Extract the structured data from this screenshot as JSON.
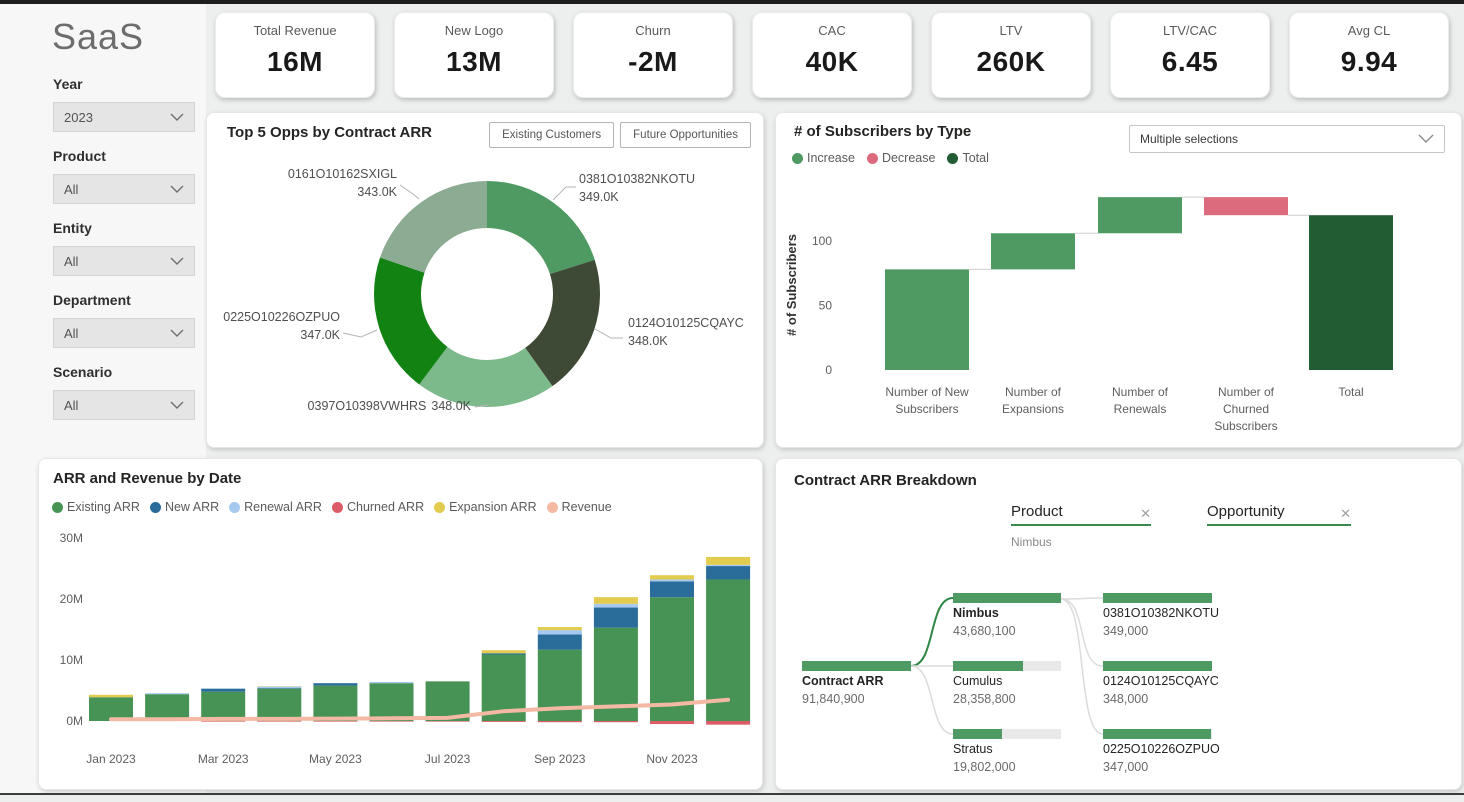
{
  "sidebar": {
    "title": "SaaS",
    "filters": [
      {
        "label": "Year",
        "value": "2023"
      },
      {
        "label": "Product",
        "value": "All"
      },
      {
        "label": "Entity",
        "value": "All"
      },
      {
        "label": "Department",
        "value": "All"
      },
      {
        "label": "Scenario",
        "value": "All"
      }
    ]
  },
  "kpis": [
    {
      "label": "Total Revenue",
      "value": "16M"
    },
    {
      "label": "New Logo",
      "value": "13M"
    },
    {
      "label": "Churn",
      "value": "-2M"
    },
    {
      "label": "CAC",
      "value": "40K"
    },
    {
      "label": "LTV",
      "value": "260K"
    },
    {
      "label": "LTV/CAC",
      "value": "6.45"
    },
    {
      "label": "Avg CL",
      "value": "9.94"
    }
  ],
  "donut_panel": {
    "title": "Top 5 Opps by Contract ARR",
    "buttons": [
      "Existing Customers",
      "Future Opportunities"
    ]
  },
  "waterfall_panel": {
    "title": "# of Subscribers by Type",
    "dropdown_value": "Multiple selections",
    "legend": [
      {
        "label": "Increase",
        "color": "#4e9a62"
      },
      {
        "label": "Decrease",
        "color": "#dd6b7e"
      },
      {
        "label": "Total",
        "color": "#215c33"
      }
    ]
  },
  "arr_panel": {
    "title": "ARR and Revenue by Date"
  },
  "tree_panel": {
    "title": "Contract ARR Breakdown"
  },
  "chart_data": [
    {
      "type": "pie",
      "subtype": "donut",
      "title": "Top 5 Opps by Contract ARR",
      "labels": [
        "0381O10382NKOTU",
        "0124O10125CQAYC",
        "0397O10398VWHRS",
        "0225O10226OZPUO",
        "0161O10162SXIGL"
      ],
      "values": [
        349000,
        348000,
        348000,
        347000,
        343000
      ],
      "value_labels": [
        "349.0K",
        "348.0K",
        "348.0K",
        "347.0K",
        "343.0K"
      ],
      "colors": [
        "#4e9a62",
        "#3e4936",
        "#7cb98b",
        "#128312",
        "#8cab93"
      ],
      "donut_hole": 0.585
    },
    {
      "type": "bar",
      "subtype": "waterfall",
      "title": "# of Subscribers by Type",
      "categories": [
        "Number of New Subscribers",
        "Number of Expansions",
        "Number of Renewals",
        "Number of Churned Subscribers",
        "Total"
      ],
      "category_lines": [
        [
          "Number of New",
          "Subscribers"
        ],
        [
          "Number of",
          "Expansions"
        ],
        [
          "Number of",
          "Renewals"
        ],
        [
          "Number of",
          "Churned",
          "Subscribers"
        ],
        [
          "Total"
        ]
      ],
      "values": [
        78,
        28,
        28,
        -14,
        120
      ],
      "kinds": [
        "increase",
        "increase",
        "increase",
        "decrease",
        "total"
      ],
      "ylabel": "# of Subscribers",
      "yticks": [
        0,
        50,
        100
      ],
      "ylim": [
        0,
        140
      ],
      "colors": {
        "increase": "#4e9a62",
        "decrease": "#dd6b7e",
        "total": "#215c33"
      }
    },
    {
      "type": "bar",
      "subtype": "stacked-with-line",
      "title": "ARR and Revenue by Date",
      "categories": [
        "Jan 2023",
        "Feb 2023",
        "Mar 2023",
        "Apr 2023",
        "May 2023",
        "Jun 2023",
        "Jul 2023",
        "Aug 2023",
        "Sep 2023",
        "Oct 2023",
        "Nov 2023",
        "Dec 2023"
      ],
      "x_tick_labels": [
        "Jan 2023",
        "Mar 2023",
        "May 2023",
        "Jul 2023",
        "Sep 2023",
        "Nov 2023"
      ],
      "series": [
        {
          "name": "Existing ARR",
          "color": "#479355",
          "values": [
            3.9,
            4.4,
            4.8,
            5.3,
            5.8,
            6.2,
            6.5,
            10.9,
            11.7,
            15.3,
            20.3,
            23.2
          ]
        },
        {
          "name": "New ARR",
          "color": "#2a6d9b",
          "values": [
            0,
            0,
            0.5,
            0.1,
            0.4,
            0,
            0,
            0.2,
            2.5,
            3.3,
            2.6,
            2.2
          ]
        },
        {
          "name": "Renewal ARR",
          "color": "#a5c9f0",
          "values": [
            0,
            0.15,
            0,
            0.25,
            0,
            0.2,
            0,
            0,
            0.7,
            0.6,
            0.3,
            0.2
          ]
        },
        {
          "name": "Churned ARR",
          "color": "#dc5c67",
          "values": [
            0,
            0,
            -0.1,
            -0.1,
            -0.1,
            -0.1,
            -0.1,
            -0.15,
            -0.2,
            -0.2,
            -0.5,
            -0.6
          ]
        },
        {
          "name": "Expansion ARR",
          "color": "#e2cc4f",
          "values": [
            0.4,
            0,
            0,
            0.05,
            0,
            0,
            0,
            0.5,
            0.5,
            1.1,
            0.7,
            1.3
          ]
        }
      ],
      "line_series": {
        "name": "Revenue",
        "color": "#f4b9a2",
        "values": [
          0.3,
          0.3,
          0.35,
          0.35,
          0.4,
          0.45,
          0.5,
          1.6,
          2.1,
          2.4,
          2.7,
          3.5
        ]
      },
      "yticks": [
        "0M",
        "10M",
        "20M",
        "30M"
      ],
      "ylim": [
        0,
        30
      ],
      "unit": "M"
    },
    {
      "type": "table",
      "subtype": "decomposition-tree",
      "title": "Contract ARR Breakdown",
      "root": {
        "label": "Contract ARR",
        "display": "91,840,900",
        "value": 91840900
      },
      "levels": [
        {
          "field": "Product",
          "selected": "Nimbus",
          "nodes": [
            {
              "label": "Nimbus",
              "display": "43,680,100",
              "value": 43680100,
              "selected": true
            },
            {
              "label": "Cumulus",
              "display": "28,358,800",
              "value": 28358800,
              "selected": false
            },
            {
              "label": "Stratus",
              "display": "19,802,000",
              "value": 19802000,
              "selected": false
            }
          ]
        },
        {
          "field": "Opportunity",
          "selected": "",
          "nodes": [
            {
              "label": "0381O10382NKOTU",
              "display": "349,000",
              "value": 349000,
              "selected": false
            },
            {
              "label": "0124O10125CQAYC",
              "display": "348,000",
              "value": 348000,
              "selected": false
            },
            {
              "label": "0225O10226OZPUO",
              "display": "347,000",
              "value": 347000,
              "selected": false
            }
          ]
        }
      ]
    }
  ]
}
